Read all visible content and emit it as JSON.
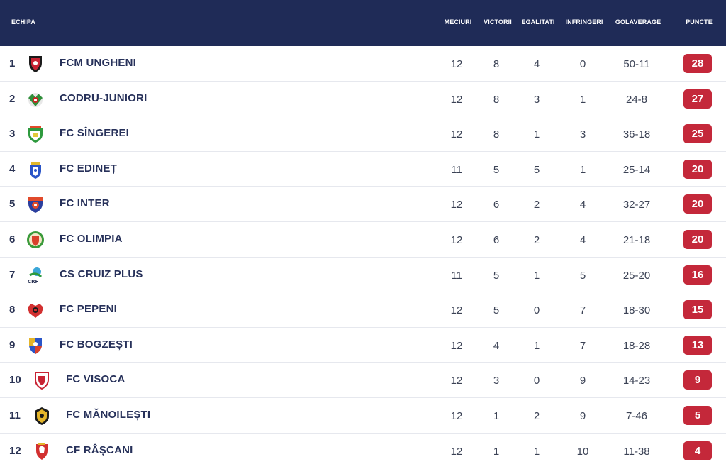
{
  "header": {
    "team": "ECHIPA",
    "played": "MECIURI",
    "wins": "VICTORII",
    "draws": "EGALITATI",
    "losses": "INFRINGERI",
    "goals": "GOLAVERAGE",
    "points": "PUNCTE"
  },
  "colors": {
    "header_bg": "#1f2b57",
    "points_badge": "#c4283a"
  },
  "rows": [
    {
      "pos": "1",
      "name": "FCM UNGHENI",
      "played": "12",
      "wins": "8",
      "draws": "4",
      "losses": "0",
      "goals": "50-11",
      "points": "28",
      "logo": "fcm-ungheni-crest-icon"
    },
    {
      "pos": "2",
      "name": "CODRU-JUNIORI",
      "played": "12",
      "wins": "8",
      "draws": "3",
      "losses": "1",
      "goals": "24-8",
      "points": "27",
      "logo": "codru-juniori-crest-icon"
    },
    {
      "pos": "3",
      "name": "FC SÎNGEREI",
      "played": "12",
      "wins": "8",
      "draws": "1",
      "losses": "3",
      "goals": "36-18",
      "points": "25",
      "logo": "fc-singerei-crest-icon"
    },
    {
      "pos": "4",
      "name": "FC EDINEȚ",
      "played": "11",
      "wins": "5",
      "draws": "5",
      "losses": "1",
      "goals": "25-14",
      "points": "20",
      "logo": "fc-edinet-crest-icon"
    },
    {
      "pos": "5",
      "name": "FC INTER",
      "played": "12",
      "wins": "6",
      "draws": "2",
      "losses": "4",
      "goals": "32-27",
      "points": "20",
      "logo": "fc-inter-crest-icon"
    },
    {
      "pos": "6",
      "name": "FC OLIMPIA",
      "played": "12",
      "wins": "6",
      "draws": "2",
      "losses": "4",
      "goals": "21-18",
      "points": "20",
      "logo": "fc-olimpia-crest-icon"
    },
    {
      "pos": "7",
      "name": "CS CRUIZ PLUS",
      "played": "11",
      "wins": "5",
      "draws": "1",
      "losses": "5",
      "goals": "25-20",
      "points": "16",
      "logo": "cs-cruiz-plus-crest-icon"
    },
    {
      "pos": "8",
      "name": "FC PEPENI",
      "played": "12",
      "wins": "5",
      "draws": "0",
      "losses": "7",
      "goals": "18-30",
      "points": "15",
      "logo": "fc-pepeni-crest-icon"
    },
    {
      "pos": "9",
      "name": "FC BOGZEȘTI",
      "played": "12",
      "wins": "4",
      "draws": "1",
      "losses": "7",
      "goals": "18-28",
      "points": "13",
      "logo": "fc-bogzesti-crest-icon"
    },
    {
      "pos": "10",
      "name": "FC VISOCA",
      "played": "12",
      "wins": "3",
      "draws": "0",
      "losses": "9",
      "goals": "14-23",
      "points": "9",
      "logo": "fc-visoca-crest-icon"
    },
    {
      "pos": "11",
      "name": "FC MĂNOILEȘTI",
      "played": "12",
      "wins": "1",
      "draws": "2",
      "losses": "9",
      "goals": "7-46",
      "points": "5",
      "logo": "fc-manoilesti-crest-icon"
    },
    {
      "pos": "12",
      "name": "CF RÂȘCANI",
      "played": "12",
      "wins": "1",
      "draws": "1",
      "losses": "10",
      "goals": "11-38",
      "points": "4",
      "logo": "cf-rascani-crest-icon"
    }
  ]
}
